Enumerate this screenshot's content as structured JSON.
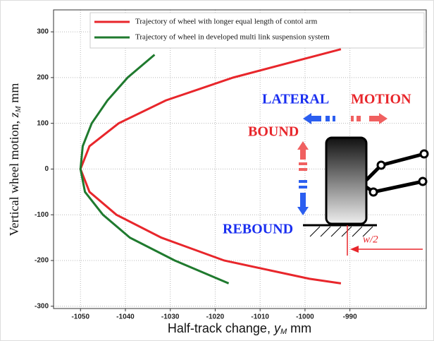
{
  "chart_data": {
    "type": "line",
    "xlabel": "Half-track change, ",
    "xlabel_var": "y",
    "xlabel_sub": "M",
    "xlabel_unit": " mm",
    "ylabel": "Vertical wheel motion, ",
    "ylabel_var": "z",
    "ylabel_sub": "M",
    "ylabel_unit": " mm",
    "xlim": [
      -1056,
      -973
    ],
    "xticks": [
      -1050,
      -1040,
      -1030,
      -1020,
      -1010,
      -1000,
      -990
    ],
    "ylim": [
      -305,
      348
    ],
    "yticks": [
      -300,
      -200,
      -100,
      0,
      100,
      200,
      300
    ],
    "grid": true,
    "legend": "upper right",
    "series": [
      {
        "name": "Trajectory of wheel with longer equal length of contol arm",
        "color": "#e8262b",
        "x": [
          -992,
          -1016,
          -1031,
          -1041.5,
          -1048,
          -1050,
          -1048,
          -1042,
          -1032,
          -1018,
          -999,
          -992
        ],
        "y": [
          262,
          200,
          150,
          100,
          50,
          0,
          -50,
          -100,
          -150,
          -200,
          -240,
          -250
        ]
      },
      {
        "name": "Trajectory of wheel in developed multi link suspension system",
        "color": "#1f7a2e",
        "x": [
          -1033.5,
          -1039.5,
          -1044,
          -1047.5,
          -1049.5,
          -1050,
          -1049,
          -1045,
          -1039,
          -1029,
          -1017
        ],
        "y": [
          250,
          200,
          150,
          100,
          50,
          0,
          -50,
          -100,
          -150,
          -200,
          -250
        ]
      }
    ],
    "annotations": [
      "LATERAL",
      "MOTION",
      "BOUND",
      "REBOUND",
      "w/2"
    ]
  }
}
